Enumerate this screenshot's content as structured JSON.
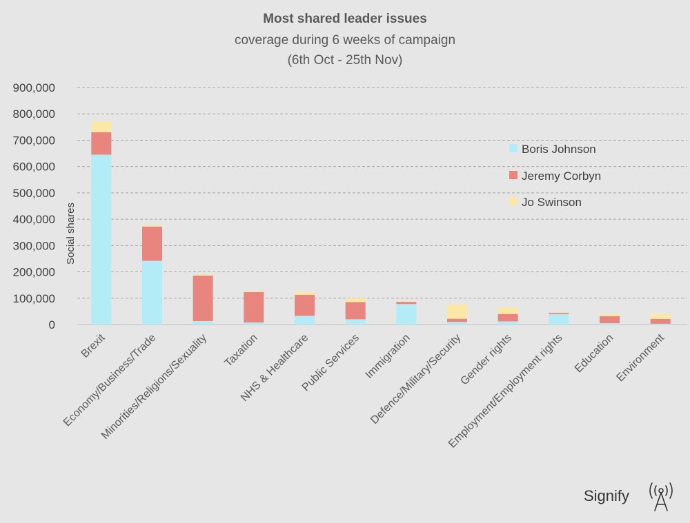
{
  "chart_data": {
    "type": "bar",
    "stacked": true,
    "title": "Most shared leader issues",
    "subtitle_lines": [
      "coverage during 6 weeks of campaign",
      "(6th Oct - 25th Nov)"
    ],
    "xlabel": "",
    "ylabel": "Social shares",
    "ylim": [
      0,
      900000
    ],
    "yticks": [
      0,
      100000,
      200000,
      300000,
      400000,
      500000,
      600000,
      700000,
      800000,
      900000
    ],
    "ytick_labels": [
      "0",
      "100,000",
      "200,000",
      "300,000",
      "400,000",
      "500,000",
      "600,000",
      "700,000",
      "800,000",
      "900,000"
    ],
    "grid": true,
    "legend_position": "right",
    "categories": [
      "Brexit",
      "Economy/Business/Trade",
      "Minorities/Religions/Sexuality",
      "Taxation",
      "NHS & Healthcare",
      "Public Services",
      "Immigration",
      "Defence/Military/Security",
      "Gender rights",
      "Employment/Employment rights",
      "Education",
      "Environment"
    ],
    "series": [
      {
        "name": "Boris Johnson",
        "color": "#b3ecf7",
        "values": [
          645000,
          242000,
          13000,
          8000,
          33000,
          20000,
          78000,
          10000,
          12000,
          40000,
          5000,
          3000
        ]
      },
      {
        "name": "Jeremy Corbyn",
        "color": "#e8857f",
        "values": [
          85000,
          130000,
          173000,
          115000,
          80000,
          65000,
          8000,
          12000,
          28000,
          5000,
          27000,
          18000
        ]
      },
      {
        "name": "Jo Swinson",
        "color": "#fbe7a6",
        "values": [
          42000,
          5000,
          4000,
          5000,
          10000,
          15000,
          2000,
          55000,
          25000,
          2000,
          8000,
          20000
        ]
      }
    ]
  },
  "brand": {
    "name": "Signify",
    "logo_icon": "broadcast-tower-icon"
  }
}
